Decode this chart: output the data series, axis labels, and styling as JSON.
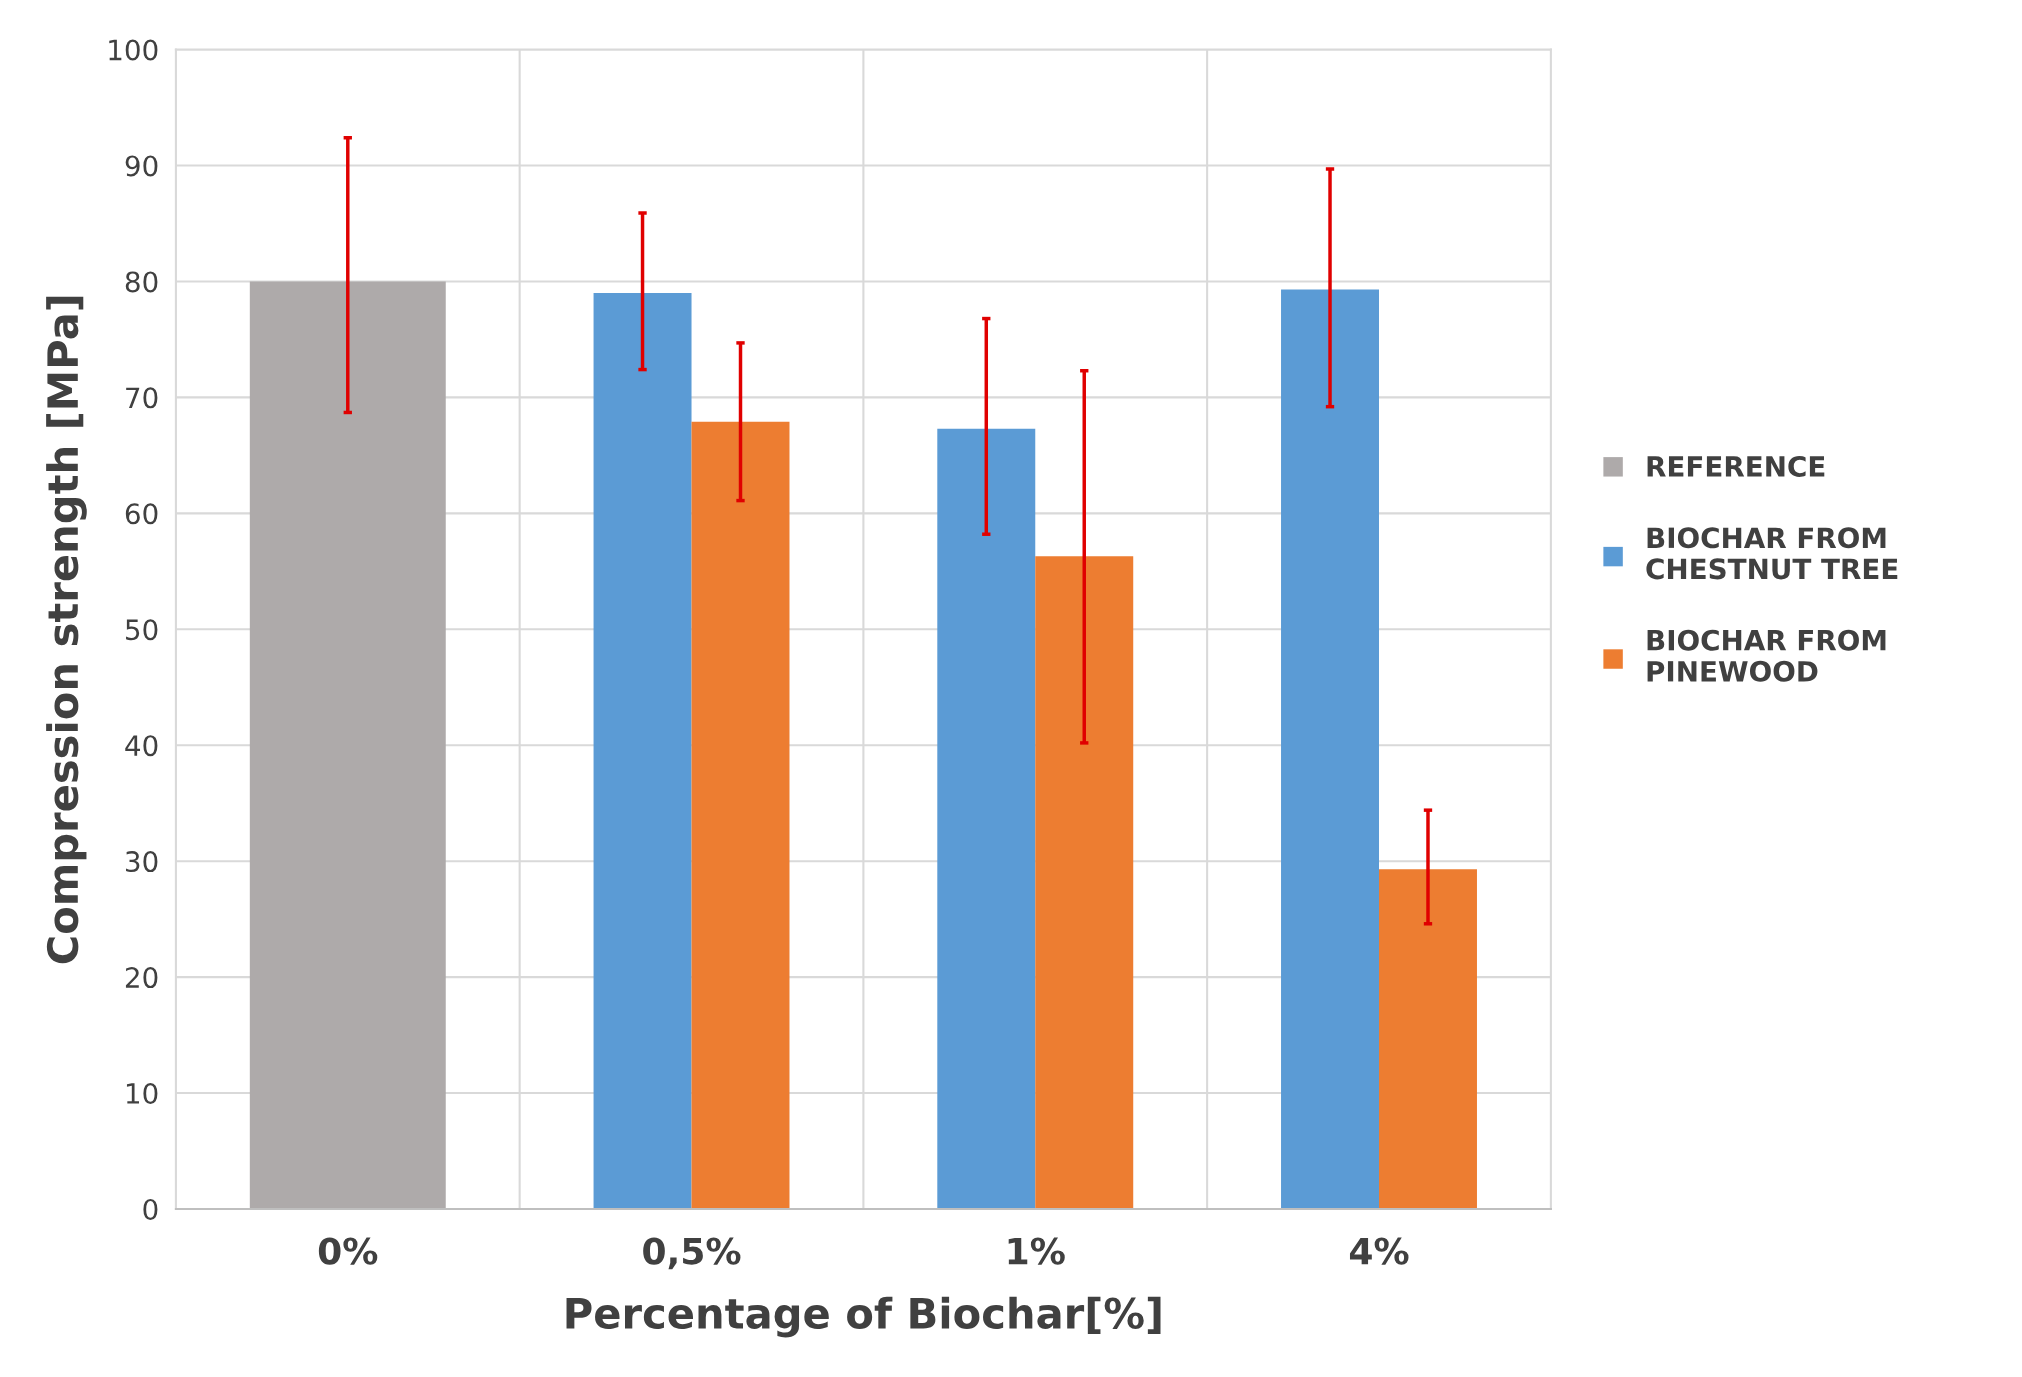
{
  "chart_data": {
    "type": "bar",
    "xlabel": "Percentage of Biochar[%]",
    "ylabel": "Compression strength [MPa]",
    "categories": [
      "0%",
      "0,5%",
      "1%",
      "4%"
    ],
    "series": [
      {
        "name": "REFERENCE",
        "color": "#aeaaaa",
        "values": [
          80,
          null,
          null,
          null
        ],
        "errors": [
          [
            68.7,
            92.4
          ],
          null,
          null,
          null
        ]
      },
      {
        "name": "BIOCHAR FROM CHESTNUT TREE",
        "color": "#5b9bd5",
        "values": [
          null,
          79.0,
          67.3,
          79.3
        ],
        "errors": [
          null,
          [
            72.4,
            85.9
          ],
          [
            58.2,
            76.8
          ],
          [
            69.2,
            89.7
          ]
        ]
      },
      {
        "name": "BIOCHAR FROM PINEWOOD",
        "color": "#ed7d31",
        "values": [
          null,
          67.9,
          56.3,
          29.3
        ],
        "errors": [
          null,
          [
            61.1,
            74.7
          ],
          [
            40.2,
            72.3
          ],
          [
            24.6,
            34.4
          ]
        ]
      }
    ],
    "ylim": [
      0,
      100
    ],
    "yticks": [
      0,
      10,
      20,
      30,
      40,
      50,
      60,
      70,
      80,
      90,
      100
    ],
    "grid": true,
    "legend": "right"
  }
}
